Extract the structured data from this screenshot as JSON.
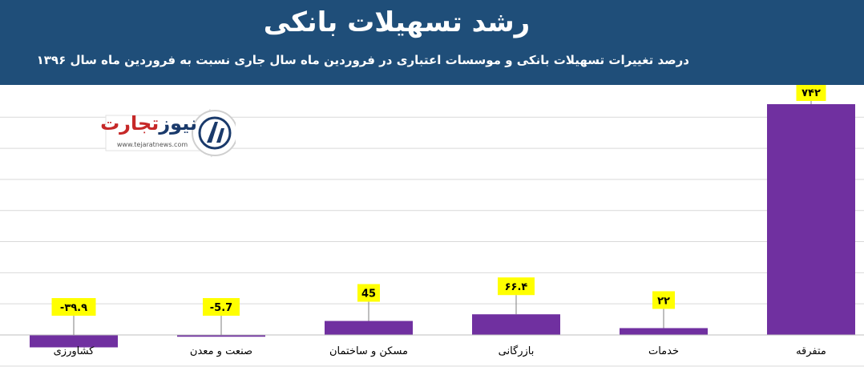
{
  "header": {
    "title": "رشد تسهیلات بانکی",
    "subtitle": "درصد تغییرات تسهیلات بانکی و موسسات اعتباری در فروردین ماه سال جاری نسبت به فروردین ماه سال ۱۳۹۶",
    "background_color": "#1f4e79"
  },
  "logo": {
    "name_part1": "تجارت",
    "name_part2": "نیوز",
    "url": "www.tejaratnews.com",
    "emblem_icon": "tejarat-news-emblem-icon"
  },
  "chart_data": {
    "type": "bar",
    "title": "رشد تسهیلات بانکی",
    "subtitle": "درصد تغییرات تسهیلات بانکی و موسسات اعتباری در فروردین ماه سال جاری نسبت به فروردین ماه سال ۱۳۹۶",
    "categories": [
      "کشاورزی",
      "صنعت و معدن",
      "مسکن و ساختمان",
      "بازرگانی",
      "خدمات",
      "متفرقه"
    ],
    "values": [
      -39.9,
      -5.7,
      45,
      66.4,
      22,
      742
    ],
    "data_labels": [
      "-۳۹.۹",
      "-5.7",
      "45",
      "۶۶.۴",
      "۲۲",
      "۷۴۲"
    ],
    "ylim": [
      -110,
      830
    ],
    "grid": true,
    "bar_color": "#7030a0",
    "label_box_color": "#ffff00"
  }
}
